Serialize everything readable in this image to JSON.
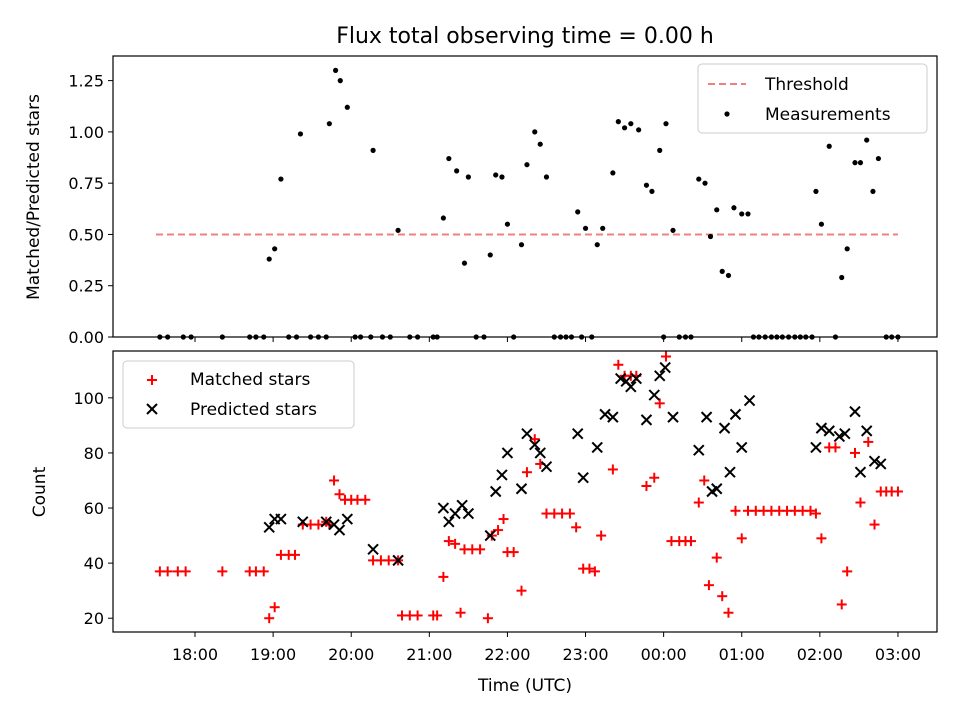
{
  "chart_data": [
    {
      "type": "scatter",
      "title": "Flux total observing time = 0.00 h",
      "xlabel": "",
      "ylabel": "Matched/Predicted stars",
      "ylim": [
        0,
        1.37
      ],
      "yticks": [
        "0.00",
        "0.25",
        "0.50",
        "0.75",
        "1.00",
        "1.25"
      ],
      "ytick_values": [
        0,
        0.25,
        0.5,
        0.75,
        1.0,
        1.25
      ],
      "legend_position": "upper right",
      "legend": [
        "Threshold",
        "Measurements"
      ],
      "threshold": {
        "name": "Threshold",
        "value": 0.5,
        "x_start": 17.5,
        "x_end": 27.0,
        "color": "#f08080"
      },
      "series": [
        {
          "name": "Measurements",
          "color": "#000000",
          "points": [
            [
              17.55,
              0
            ],
            [
              17.65,
              0
            ],
            [
              17.85,
              0
            ],
            [
              17.95,
              0
            ],
            [
              18.35,
              0
            ],
            [
              18.7,
              0
            ],
            [
              18.78,
              0
            ],
            [
              18.88,
              0
            ],
            [
              18.95,
              0.38
            ],
            [
              19.02,
              0.43
            ],
            [
              19.1,
              0.77
            ],
            [
              19.2,
              0
            ],
            [
              19.3,
              0
            ],
            [
              19.35,
              0.99
            ],
            [
              19.48,
              0
            ],
            [
              19.58,
              0
            ],
            [
              19.68,
              0
            ],
            [
              19.72,
              1.04
            ],
            [
              19.8,
              1.3
            ],
            [
              19.86,
              1.25
            ],
            [
              19.95,
              1.12
            ],
            [
              20.05,
              0
            ],
            [
              20.12,
              0
            ],
            [
              20.25,
              0
            ],
            [
              20.28,
              0.91
            ],
            [
              20.4,
              0
            ],
            [
              20.5,
              0
            ],
            [
              20.6,
              0.52
            ],
            [
              20.75,
              0
            ],
            [
              20.85,
              0
            ],
            [
              21.05,
              0
            ],
            [
              21.1,
              0
            ],
            [
              21.18,
              0.58
            ],
            [
              21.25,
              0.87
            ],
            [
              21.35,
              0.81
            ],
            [
              21.45,
              0.36
            ],
            [
              21.5,
              0.78
            ],
            [
              21.6,
              0
            ],
            [
              21.7,
              0
            ],
            [
              21.78,
              0.4
            ],
            [
              21.85,
              0.79
            ],
            [
              21.93,
              0.78
            ],
            [
              22.0,
              0.55
            ],
            [
              22.08,
              0
            ],
            [
              22.18,
              0.45
            ],
            [
              22.25,
              0.84
            ],
            [
              22.35,
              1.0
            ],
            [
              22.42,
              0.94
            ],
            [
              22.5,
              0.78
            ],
            [
              22.6,
              0
            ],
            [
              22.68,
              0
            ],
            [
              22.75,
              0
            ],
            [
              22.82,
              0
            ],
            [
              22.9,
              0.61
            ],
            [
              22.95,
              0
            ],
            [
              23.0,
              0.53
            ],
            [
              23.08,
              0
            ],
            [
              23.15,
              0.45
            ],
            [
              23.22,
              0.53
            ],
            [
              23.35,
              0.8
            ],
            [
              23.42,
              1.05
            ],
            [
              23.5,
              1.02
            ],
            [
              23.58,
              1.04
            ],
            [
              23.68,
              1.01
            ],
            [
              23.78,
              0.74
            ],
            [
              23.85,
              0.71
            ],
            [
              23.95,
              0.91
            ],
            [
              24.0,
              0
            ],
            [
              24.03,
              1.04
            ],
            [
              24.12,
              0.52
            ],
            [
              24.2,
              0
            ],
            [
              24.28,
              0
            ],
            [
              24.35,
              0
            ],
            [
              24.45,
              0.77
            ],
            [
              24.53,
              0.75
            ],
            [
              24.6,
              0.49
            ],
            [
              24.68,
              0.62
            ],
            [
              24.75,
              0.32
            ],
            [
              24.83,
              0.3
            ],
            [
              24.9,
              0.63
            ],
            [
              25.0,
              0.6
            ],
            [
              25.08,
              0.6
            ],
            [
              25.15,
              0
            ],
            [
              25.22,
              0
            ],
            [
              25.3,
              0
            ],
            [
              25.38,
              0
            ],
            [
              25.45,
              0
            ],
            [
              25.52,
              0
            ],
            [
              25.6,
              0
            ],
            [
              25.68,
              0
            ],
            [
              25.75,
              0
            ],
            [
              25.82,
              0
            ],
            [
              25.9,
              0
            ],
            [
              25.95,
              0.71
            ],
            [
              26.02,
              0.55
            ],
            [
              26.12,
              0.93
            ],
            [
              26.2,
              0
            ],
            [
              26.28,
              0.29
            ],
            [
              26.35,
              0.43
            ],
            [
              26.45,
              0.85
            ],
            [
              26.52,
              0.85
            ],
            [
              26.6,
              0.96
            ],
            [
              26.68,
              0.71
            ],
            [
              26.75,
              0.87
            ],
            [
              26.85,
              0
            ],
            [
              26.92,
              0
            ],
            [
              27.0,
              0
            ]
          ]
        }
      ]
    },
    {
      "type": "scatter",
      "title": "",
      "xlabel": "Time (UTC)",
      "ylabel": "Count",
      "xlim": [
        16.95,
        27.5
      ],
      "xticks": [
        "18:00",
        "19:00",
        "20:00",
        "21:00",
        "22:00",
        "23:00",
        "00:00",
        "01:00",
        "02:00",
        "03:00"
      ],
      "xtick_values": [
        18,
        19,
        20,
        21,
        22,
        23,
        24,
        25,
        26,
        27
      ],
      "ylim": [
        15,
        117
      ],
      "yticks": [
        "20",
        "40",
        "60",
        "80",
        "100"
      ],
      "ytick_values": [
        20,
        40,
        60,
        80,
        100
      ],
      "legend_position": "upper left",
      "legend": [
        "Matched stars",
        "Predicted stars"
      ],
      "series": [
        {
          "name": "Matched stars",
          "marker": "plus",
          "color": "#ff0000",
          "points": [
            [
              17.55,
              37
            ],
            [
              17.65,
              37
            ],
            [
              17.78,
              37
            ],
            [
              17.88,
              37
            ],
            [
              18.35,
              37
            ],
            [
              18.7,
              37
            ],
            [
              18.78,
              37
            ],
            [
              18.88,
              37
            ],
            [
              18.95,
              20
            ],
            [
              19.02,
              24
            ],
            [
              19.1,
              43
            ],
            [
              19.2,
              43
            ],
            [
              19.28,
              43
            ],
            [
              19.38,
              54
            ],
            [
              19.48,
              54
            ],
            [
              19.58,
              54
            ],
            [
              19.68,
              55
            ],
            [
              19.72,
              54
            ],
            [
              19.78,
              70
            ],
            [
              19.85,
              65
            ],
            [
              19.92,
              63
            ],
            [
              20.0,
              63
            ],
            [
              20.08,
              63
            ],
            [
              20.18,
              63
            ],
            [
              20.28,
              41
            ],
            [
              20.38,
              41
            ],
            [
              20.48,
              41
            ],
            [
              20.6,
              41
            ],
            [
              20.65,
              21
            ],
            [
              20.75,
              21
            ],
            [
              20.85,
              21
            ],
            [
              21.05,
              21
            ],
            [
              21.1,
              21
            ],
            [
              21.18,
              35
            ],
            [
              21.25,
              48
            ],
            [
              21.33,
              47
            ],
            [
              21.4,
              22
            ],
            [
              21.45,
              45
            ],
            [
              21.55,
              45
            ],
            [
              21.65,
              45
            ],
            [
              21.75,
              20
            ],
            [
              21.8,
              50
            ],
            [
              21.88,
              52
            ],
            [
              21.95,
              56
            ],
            [
              22.0,
              44
            ],
            [
              22.08,
              44
            ],
            [
              22.18,
              30
            ],
            [
              22.25,
              73
            ],
            [
              22.35,
              85
            ],
            [
              22.42,
              76
            ],
            [
              22.5,
              58
            ],
            [
              22.6,
              58
            ],
            [
              22.7,
              58
            ],
            [
              22.8,
              58
            ],
            [
              22.88,
              53
            ],
            [
              22.97,
              38
            ],
            [
              23.05,
              38
            ],
            [
              23.12,
              37
            ],
            [
              23.2,
              50
            ],
            [
              23.35,
              74
            ],
            [
              23.42,
              112
            ],
            [
              23.5,
              108
            ],
            [
              23.58,
              108
            ],
            [
              23.65,
              108
            ],
            [
              23.78,
              68
            ],
            [
              23.88,
              71
            ],
            [
              23.95,
              98
            ],
            [
              24.03,
              115
            ],
            [
              24.1,
              48
            ],
            [
              24.2,
              48
            ],
            [
              24.28,
              48
            ],
            [
              24.35,
              48
            ],
            [
              24.45,
              62
            ],
            [
              24.52,
              70
            ],
            [
              24.58,
              32
            ],
            [
              24.68,
              42
            ],
            [
              24.75,
              28
            ],
            [
              24.83,
              22
            ],
            [
              24.92,
              59
            ],
            [
              25.0,
              49
            ],
            [
              25.08,
              59
            ],
            [
              25.18,
              59
            ],
            [
              25.28,
              59
            ],
            [
              25.38,
              59
            ],
            [
              25.48,
              59
            ],
            [
              25.58,
              59
            ],
            [
              25.68,
              59
            ],
            [
              25.78,
              59
            ],
            [
              25.88,
              59
            ],
            [
              25.95,
              58
            ],
            [
              26.02,
              49
            ],
            [
              26.12,
              82
            ],
            [
              26.2,
              82
            ],
            [
              26.28,
              25
            ],
            [
              26.35,
              37
            ],
            [
              26.45,
              80
            ],
            [
              26.52,
              62
            ],
            [
              26.62,
              84
            ],
            [
              26.7,
              54
            ],
            [
              26.78,
              66
            ],
            [
              26.85,
              66
            ],
            [
              26.92,
              66
            ],
            [
              27.0,
              66
            ]
          ]
        },
        {
          "name": "Predicted stars",
          "marker": "x",
          "color": "#000000",
          "points": [
            [
              18.95,
              53
            ],
            [
              19.02,
              56
            ],
            [
              19.1,
              56
            ],
            [
              19.38,
              55
            ],
            [
              19.68,
              55
            ],
            [
              19.78,
              54
            ],
            [
              19.85,
              52
            ],
            [
              19.95,
              56
            ],
            [
              20.28,
              45
            ],
            [
              20.6,
              41
            ],
            [
              21.18,
              60
            ],
            [
              21.25,
              55
            ],
            [
              21.33,
              58
            ],
            [
              21.42,
              61
            ],
            [
              21.5,
              58
            ],
            [
              21.78,
              50
            ],
            [
              21.85,
              66
            ],
            [
              21.93,
              72
            ],
            [
              22.0,
              80
            ],
            [
              22.18,
              67
            ],
            [
              22.25,
              87
            ],
            [
              22.35,
              83
            ],
            [
              22.42,
              80
            ],
            [
              22.5,
              75
            ],
            [
              22.9,
              87
            ],
            [
              22.97,
              71
            ],
            [
              23.15,
              82
            ],
            [
              23.25,
              94
            ],
            [
              23.35,
              93
            ],
            [
              23.45,
              107
            ],
            [
              23.52,
              106
            ],
            [
              23.58,
              104
            ],
            [
              23.65,
              107
            ],
            [
              23.78,
              92
            ],
            [
              23.88,
              101
            ],
            [
              23.95,
              108
            ],
            [
              24.02,
              111
            ],
            [
              24.12,
              93
            ],
            [
              24.45,
              81
            ],
            [
              24.55,
              93
            ],
            [
              24.62,
              66
            ],
            [
              24.68,
              67
            ],
            [
              24.78,
              89
            ],
            [
              24.85,
              73
            ],
            [
              24.92,
              94
            ],
            [
              25.0,
              82
            ],
            [
              25.1,
              99
            ],
            [
              25.95,
              82
            ],
            [
              26.02,
              89
            ],
            [
              26.12,
              88
            ],
            [
              26.25,
              86
            ],
            [
              26.32,
              87
            ],
            [
              26.45,
              95
            ],
            [
              26.52,
              73
            ],
            [
              26.6,
              88
            ],
            [
              26.7,
              77
            ],
            [
              26.78,
              76
            ]
          ]
        }
      ]
    }
  ]
}
